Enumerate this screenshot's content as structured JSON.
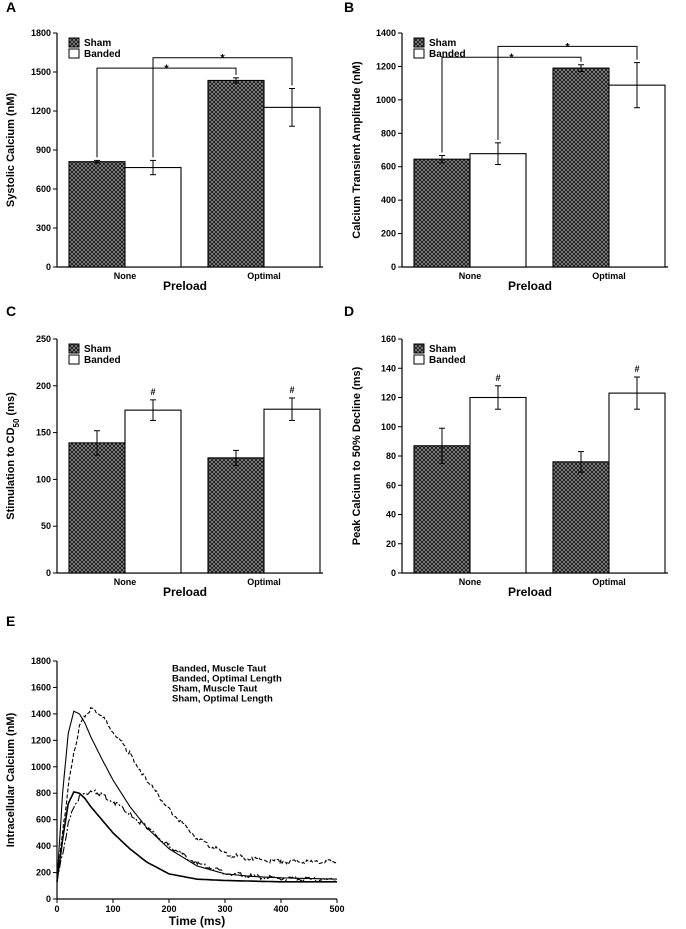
{
  "colors": {
    "axis": "#000000",
    "sham_fill": "#3a3a3a",
    "banded_fill": "#ffffff"
  },
  "chart_data": [
    {
      "panel": "A",
      "type": "bar",
      "categories": [
        "None",
        "Optimal"
      ],
      "xlabel": "Preload",
      "ylabel": "Systolic Calcium (nM)",
      "ylim": [
        0,
        1800
      ],
      "yticks": [
        0,
        300,
        600,
        900,
        1200,
        1500,
        1800
      ],
      "series": [
        {
          "name": "Sham",
          "values": [
            810,
            1435
          ],
          "errors": [
            10,
            20
          ]
        },
        {
          "name": "Banded",
          "values": [
            765,
            1228
          ],
          "errors": [
            55,
            145
          ]
        }
      ],
      "annotations": [
        {
          "label": "*",
          "from": [
            "None",
            "Sham"
          ],
          "to": [
            "Optimal",
            "Sham"
          ],
          "level": 1530
        },
        {
          "label": "*",
          "from": [
            "None",
            "Banded"
          ],
          "to": [
            "Optimal",
            "Banded"
          ],
          "level": 1610
        }
      ]
    },
    {
      "panel": "B",
      "type": "bar",
      "categories": [
        "None",
        "Optimal"
      ],
      "xlabel": "Preload",
      "ylabel": "Calcium Transient Amplitude (nM)",
      "ylim": [
        0,
        1400
      ],
      "yticks": [
        0,
        200,
        400,
        600,
        800,
        1000,
        1200,
        1400
      ],
      "series": [
        {
          "name": "Sham",
          "values": [
            645,
            1190
          ],
          "errors": [
            22,
            20
          ]
        },
        {
          "name": "Banded",
          "values": [
            678,
            1088
          ],
          "errors": [
            65,
            135
          ]
        }
      ],
      "annotations": [
        {
          "label": "*",
          "from": [
            "None",
            "Sham"
          ],
          "to": [
            "Optimal",
            "Sham"
          ],
          "level": 1255
        },
        {
          "label": "*",
          "from": [
            "None",
            "Banded"
          ],
          "to": [
            "Optimal",
            "Banded"
          ],
          "level": 1320
        }
      ]
    },
    {
      "panel": "C",
      "type": "bar",
      "categories": [
        "None",
        "Optimal"
      ],
      "xlabel": "Preload",
      "ylabel": "Stimulation to CD",
      "ylabel_sub": "50",
      "ylabel_suffix": " (ms)",
      "ylim": [
        0,
        250
      ],
      "yticks": [
        0,
        50,
        100,
        150,
        200,
        250
      ],
      "series": [
        {
          "name": "Sham",
          "values": [
            139,
            123
          ],
          "errors": [
            13,
            8
          ]
        },
        {
          "name": "Banded",
          "values": [
            174,
            175
          ],
          "errors": [
            11,
            12
          ]
        }
      ],
      "markers": [
        {
          "label": "#",
          "category": "None",
          "series": "Banded"
        },
        {
          "label": "#",
          "category": "Optimal",
          "series": "Banded"
        }
      ]
    },
    {
      "panel": "D",
      "type": "bar",
      "categories": [
        "None",
        "Optimal"
      ],
      "xlabel": "Preload",
      "ylabel": "Peak Calcium to 50% Decline (ms)",
      "ylim": [
        0,
        160
      ],
      "yticks": [
        0,
        20,
        40,
        60,
        80,
        100,
        120,
        140,
        160
      ],
      "series": [
        {
          "name": "Sham",
          "values": [
            87,
            76
          ],
          "errors": [
            12,
            7
          ]
        },
        {
          "name": "Banded",
          "values": [
            120,
            123
          ],
          "errors": [
            8,
            11
          ]
        }
      ],
      "markers": [
        {
          "label": "#",
          "category": "None",
          "series": "Banded"
        },
        {
          "label": "#",
          "category": "Optimal",
          "series": "Banded"
        }
      ]
    },
    {
      "panel": "E",
      "type": "line",
      "xlabel": "Time (ms)",
      "ylabel": "Intracellular Calcium (nM)",
      "xlim": [
        0,
        500
      ],
      "ylim": [
        0,
        1800
      ],
      "xticks": [
        0,
        100,
        200,
        300,
        400,
        500
      ],
      "yticks": [
        0,
        200,
        400,
        600,
        800,
        1000,
        1200,
        1400,
        1600,
        1800
      ],
      "series": [
        {
          "name": "Banded, Muscle Taut",
          "dash": "8 2 2 2",
          "x": [
            0,
            10,
            20,
            30,
            40,
            50,
            60,
            70,
            80,
            100,
            130,
            160,
            200,
            250,
            300,
            350,
            400,
            450,
            500
          ],
          "y": [
            130,
            350,
            560,
            700,
            770,
            800,
            810,
            805,
            790,
            740,
            650,
            540,
            400,
            270,
            200,
            170,
            155,
            150,
            145
          ]
        },
        {
          "name": "Banded, Optimal Length",
          "dash": "4 2",
          "x": [
            0,
            10,
            20,
            30,
            40,
            50,
            60,
            70,
            80,
            100,
            130,
            160,
            200,
            250,
            300,
            350,
            400,
            450,
            500
          ],
          "y": [
            130,
            500,
            850,
            1100,
            1300,
            1390,
            1430,
            1420,
            1380,
            1270,
            1100,
            900,
            680,
            460,
            340,
            300,
            285,
            280,
            280
          ]
        },
        {
          "name": "Sham, Muscle Taut",
          "dash": "",
          "x": [
            0,
            10,
            20,
            30,
            40,
            50,
            60,
            80,
            100,
            130,
            160,
            200,
            250,
            300,
            350,
            400,
            450,
            500
          ],
          "y": [
            130,
            450,
            720,
            810,
            800,
            760,
            700,
            600,
            500,
            380,
            280,
            190,
            150,
            140,
            135,
            130,
            130,
            130
          ]
        },
        {
          "name": "Sham, Optimal Length",
          "dash": "",
          "x": [
            0,
            10,
            20,
            30,
            40,
            50,
            60,
            80,
            100,
            130,
            160,
            200,
            250,
            300,
            350,
            400,
            450,
            500
          ],
          "y": [
            130,
            800,
            1250,
            1420,
            1400,
            1330,
            1230,
            1060,
            900,
            700,
            540,
            380,
            250,
            190,
            170,
            160,
            155,
            150
          ]
        }
      ]
    }
  ],
  "legend": {
    "sham": "Sham",
    "banded": "Banded"
  },
  "labels": {
    "A": "A",
    "B": "B",
    "C": "C",
    "D": "D",
    "E": "E"
  }
}
